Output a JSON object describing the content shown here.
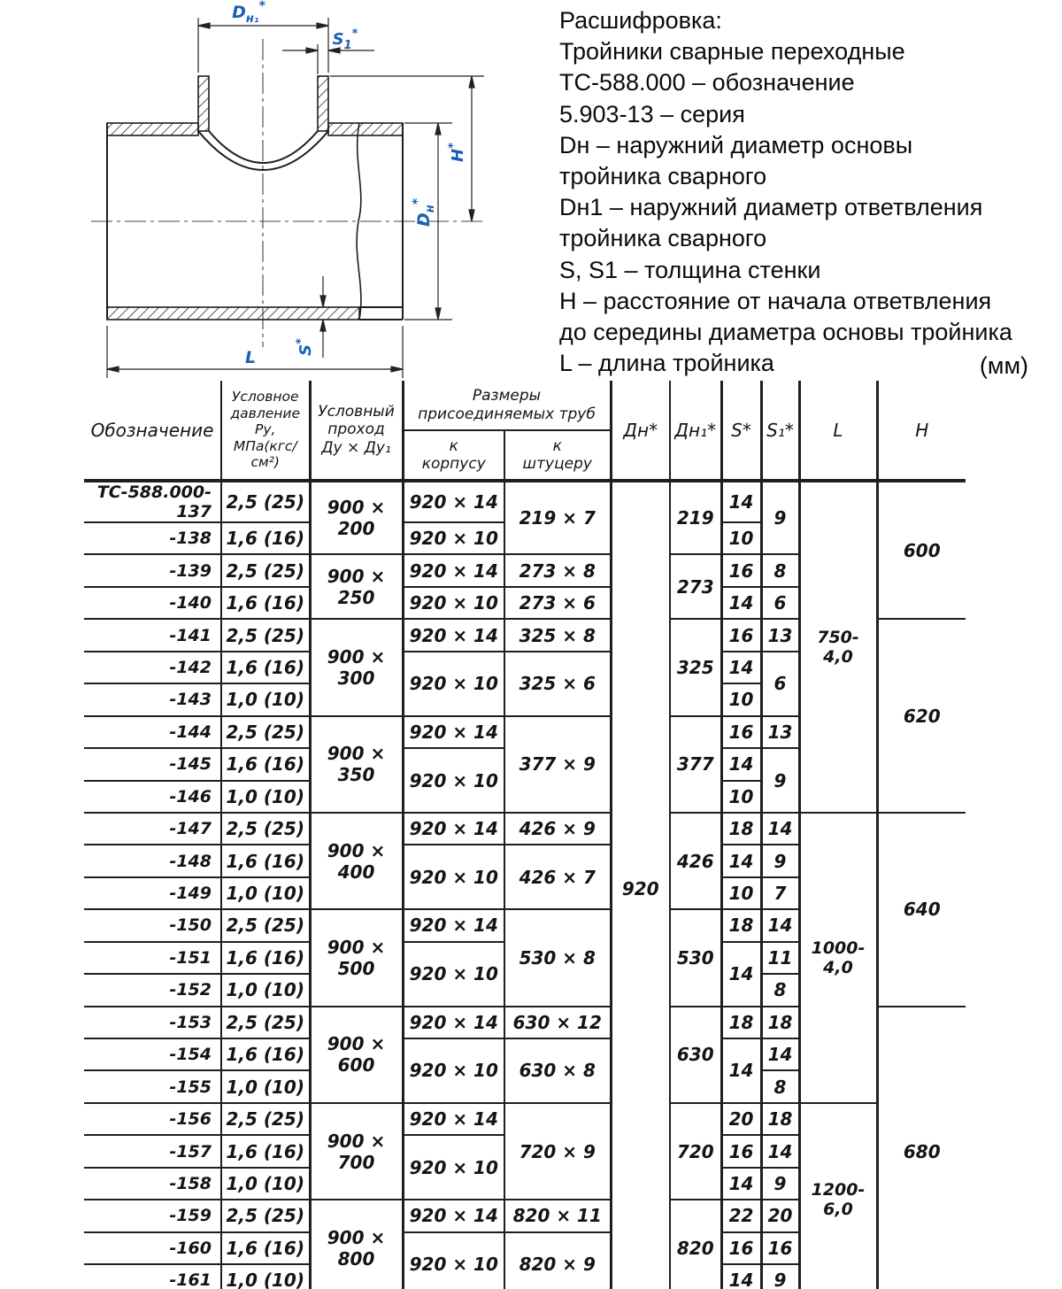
{
  "legend": {
    "lines": [
      "Расшифровка:",
      "Тройники сварные переходные",
      "ТС-588.000 – обозначение",
      "5.903-13 – серия",
      "Dн – наружний диаметр основы",
      "тройника сварного",
      "Dн1 – наружний диаметр ответвления",
      "тройника сварного",
      "S, S1 – толщина стенки",
      "Н – расстояние от начала ответвления",
      "до середины диаметра основы тройника",
      "L – длина тройника"
    ],
    "units": "(мм)"
  },
  "drawing": {
    "labels": {
      "star": "*",
      "dn1": {
        "b": "D",
        "s": "н₁"
      },
      "dn": {
        "b": "D",
        "s": "н"
      },
      "s1": {
        "b": "S",
        "s": "1"
      },
      "s": {
        "b": "S"
      },
      "h": {
        "b": "H"
      },
      "l": {
        "b": "L"
      }
    }
  },
  "table": {
    "header": {
      "designation": "Обозначение",
      "pressure": "Условное\nдавление\nРу,\nМПа(кгс/см²)",
      "bore": "Условный\nпроход\nДу × Ду₁",
      "pipes_group": "Размеры\nприсоединяемых труб",
      "to_body": "к\nкорпусу",
      "to_branch": "к\nштуцеру",
      "dn": "Дн*",
      "dn1": "Дн₁*",
      "s": "S*",
      "s1": "S₁*",
      "l": "L",
      "h": "H"
    },
    "rows": [
      [
        {
          "c": 0,
          "t": "ТС-588.000-137"
        },
        {
          "c": 1,
          "t": "2,5 (25)"
        },
        {
          "c": 2,
          "t": "900 × 200",
          "rs": 2
        },
        {
          "c": 3,
          "t": "920 × 14"
        },
        {
          "c": 4,
          "t": "219 × 7",
          "rs": 2
        },
        {
          "c": 5,
          "t": "920",
          "rs": 25
        },
        {
          "c": 6,
          "t": "219",
          "rs": 2
        },
        {
          "c": 7,
          "t": "14"
        },
        {
          "c": 8,
          "t": "9",
          "rs": 2
        },
        {
          "c": 9,
          "t": "750-4,0",
          "rs": 10
        },
        {
          "c": 10,
          "t": "600",
          "rs": 4
        }
      ],
      [
        {
          "c": 0,
          "t": "-138"
        },
        {
          "c": 1,
          "t": "1,6 (16)"
        },
        {
          "c": 3,
          "t": "920 × 10"
        },
        {
          "c": 7,
          "t": "10"
        }
      ],
      [
        {
          "c": 0,
          "t": "-139"
        },
        {
          "c": 1,
          "t": "2,5 (25)"
        },
        {
          "c": 2,
          "t": "900 × 250",
          "rs": 2
        },
        {
          "c": 3,
          "t": "920 × 14"
        },
        {
          "c": 4,
          "t": "273 × 8"
        },
        {
          "c": 6,
          "t": "273",
          "rs": 2
        },
        {
          "c": 7,
          "t": "16"
        },
        {
          "c": 8,
          "t": "8"
        }
      ],
      [
        {
          "c": 0,
          "t": "-140"
        },
        {
          "c": 1,
          "t": "1,6 (16)"
        },
        {
          "c": 3,
          "t": "920 × 10"
        },
        {
          "c": 4,
          "t": "273 × 6"
        },
        {
          "c": 7,
          "t": "14"
        },
        {
          "c": 8,
          "t": "6"
        }
      ],
      [
        {
          "c": 0,
          "t": "-141"
        },
        {
          "c": 1,
          "t": "2,5 (25)"
        },
        {
          "c": 2,
          "t": "900 × 300",
          "rs": 3
        },
        {
          "c": 3,
          "t": "920 × 14"
        },
        {
          "c": 4,
          "t": "325 × 8"
        },
        {
          "c": 6,
          "t": "325",
          "rs": 3
        },
        {
          "c": 7,
          "t": "16"
        },
        {
          "c": 8,
          "t": "13"
        },
        {
          "c": 10,
          "t": "620",
          "rs": 6
        }
      ],
      [
        {
          "c": 0,
          "t": "-142"
        },
        {
          "c": 1,
          "t": "1,6 (16)"
        },
        {
          "c": 3,
          "t": "920 × 10",
          "rs": 2
        },
        {
          "c": 4,
          "t": "325 × 6",
          "rs": 2
        },
        {
          "c": 7,
          "t": "14"
        },
        {
          "c": 8,
          "t": "6",
          "rs": 2
        }
      ],
      [
        {
          "c": 0,
          "t": "-143"
        },
        {
          "c": 1,
          "t": "1,0 (10)"
        },
        {
          "c": 7,
          "t": "10"
        }
      ],
      [
        {
          "c": 0,
          "t": "-144"
        },
        {
          "c": 1,
          "t": "2,5 (25)"
        },
        {
          "c": 2,
          "t": "900 × 350",
          "rs": 3
        },
        {
          "c": 3,
          "t": "920 × 14"
        },
        {
          "c": 4,
          "t": "377 × 9",
          "rs": 3
        },
        {
          "c": 6,
          "t": "377",
          "rs": 3
        },
        {
          "c": 7,
          "t": "16"
        },
        {
          "c": 8,
          "t": "13"
        }
      ],
      [
        {
          "c": 0,
          "t": "-145"
        },
        {
          "c": 1,
          "t": "1,6 (16)"
        },
        {
          "c": 3,
          "t": "920 × 10",
          "rs": 2
        },
        {
          "c": 7,
          "t": "14"
        },
        {
          "c": 8,
          "t": "9",
          "rs": 2
        }
      ],
      [
        {
          "c": 0,
          "t": "-146"
        },
        {
          "c": 1,
          "t": "1,0 (10)"
        },
        {
          "c": 7,
          "t": "10"
        }
      ],
      [
        {
          "c": 0,
          "t": "-147"
        },
        {
          "c": 1,
          "t": "2,5 (25)"
        },
        {
          "c": 2,
          "t": "900 × 400",
          "rs": 3
        },
        {
          "c": 3,
          "t": "920 × 14"
        },
        {
          "c": 4,
          "t": "426 × 9"
        },
        {
          "c": 6,
          "t": "426",
          "rs": 3
        },
        {
          "c": 7,
          "t": "18"
        },
        {
          "c": 8,
          "t": "14"
        },
        {
          "c": 9,
          "t": "1000-4,0",
          "rs": 9
        },
        {
          "c": 10,
          "t": "640",
          "rs": 6
        }
      ],
      [
        {
          "c": 0,
          "t": "-148"
        },
        {
          "c": 1,
          "t": "1,6 (16)"
        },
        {
          "c": 3,
          "t": "920 × 10",
          "rs": 2
        },
        {
          "c": 4,
          "t": "426 × 7",
          "rs": 2
        },
        {
          "c": 7,
          "t": "14"
        },
        {
          "c": 8,
          "t": "9"
        }
      ],
      [
        {
          "c": 0,
          "t": "-149"
        },
        {
          "c": 1,
          "t": "1,0 (10)"
        },
        {
          "c": 7,
          "t": "10"
        },
        {
          "c": 8,
          "t": "7"
        }
      ],
      [
        {
          "c": 0,
          "t": "-150"
        },
        {
          "c": 1,
          "t": "2,5 (25)"
        },
        {
          "c": 2,
          "t": "900 × 500",
          "rs": 3
        },
        {
          "c": 3,
          "t": "920 × 14"
        },
        {
          "c": 4,
          "t": "530 × 8",
          "rs": 3
        },
        {
          "c": 6,
          "t": "530",
          "rs": 3
        },
        {
          "c": 7,
          "t": "18"
        },
        {
          "c": 8,
          "t": "14"
        }
      ],
      [
        {
          "c": 0,
          "t": "-151"
        },
        {
          "c": 1,
          "t": "1,6 (16)"
        },
        {
          "c": 3,
          "t": "920 × 10",
          "rs": 2
        },
        {
          "c": 7,
          "t": "14",
          "rs": 2
        },
        {
          "c": 8,
          "t": "11"
        }
      ],
      [
        {
          "c": 0,
          "t": "-152"
        },
        {
          "c": 1,
          "t": "1,0 (10)"
        },
        {
          "c": 8,
          "t": "8"
        }
      ],
      [
        {
          "c": 0,
          "t": "-153"
        },
        {
          "c": 1,
          "t": "2,5 (25)"
        },
        {
          "c": 2,
          "t": "900 × 600",
          "rs": 3
        },
        {
          "c": 3,
          "t": "920 × 14"
        },
        {
          "c": 4,
          "t": "630 × 12"
        },
        {
          "c": 6,
          "t": "630",
          "rs": 3
        },
        {
          "c": 7,
          "t": "18"
        },
        {
          "c": 8,
          "t": "18"
        },
        {
          "c": 10,
          "t": "680",
          "rs": 9
        }
      ],
      [
        {
          "c": 0,
          "t": "-154"
        },
        {
          "c": 1,
          "t": "1,6 (16)"
        },
        {
          "c": 3,
          "t": "920 × 10",
          "rs": 2
        },
        {
          "c": 4,
          "t": "630 × 8",
          "rs": 2
        },
        {
          "c": 7,
          "t": "14",
          "rs": 2
        },
        {
          "c": 8,
          "t": "14"
        }
      ],
      [
        {
          "c": 0,
          "t": "-155"
        },
        {
          "c": 1,
          "t": "1,0 (10)"
        },
        {
          "c": 8,
          "t": "8"
        }
      ],
      [
        {
          "c": 0,
          "t": "-156"
        },
        {
          "c": 1,
          "t": "2,5 (25)"
        },
        {
          "c": 2,
          "t": "900 × 700",
          "rs": 3
        },
        {
          "c": 3,
          "t": "920 × 14"
        },
        {
          "c": 4,
          "t": "720 × 9",
          "rs": 3
        },
        {
          "c": 6,
          "t": "720",
          "rs": 3
        },
        {
          "c": 7,
          "t": "20"
        },
        {
          "c": 8,
          "t": "18"
        },
        {
          "c": 9,
          "t": "1200-6,0",
          "rs": 6
        }
      ],
      [
        {
          "c": 0,
          "t": "-157"
        },
        {
          "c": 1,
          "t": "1,6 (16)"
        },
        {
          "c": 3,
          "t": "920 × 10",
          "rs": 2
        },
        {
          "c": 7,
          "t": "16"
        },
        {
          "c": 8,
          "t": "14"
        }
      ],
      [
        {
          "c": 0,
          "t": "-158"
        },
        {
          "c": 1,
          "t": "1,0 (10)"
        },
        {
          "c": 7,
          "t": "14"
        },
        {
          "c": 8,
          "t": "9"
        }
      ],
      [
        {
          "c": 0,
          "t": "-159"
        },
        {
          "c": 1,
          "t": "2,5 (25)"
        },
        {
          "c": 2,
          "t": "900 × 800",
          "rs": 3
        },
        {
          "c": 3,
          "t": "920 × 14"
        },
        {
          "c": 4,
          "t": "820 × 11"
        },
        {
          "c": 6,
          "t": "820",
          "rs": 3
        },
        {
          "c": 7,
          "t": "22"
        },
        {
          "c": 8,
          "t": "20"
        }
      ],
      [
        {
          "c": 0,
          "t": "-160"
        },
        {
          "c": 1,
          "t": "1,6 (16)"
        },
        {
          "c": 3,
          "t": "920 × 10",
          "rs": 2
        },
        {
          "c": 4,
          "t": "820 × 9",
          "rs": 2
        },
        {
          "c": 7,
          "t": "16"
        },
        {
          "c": 8,
          "t": "16"
        }
      ],
      [
        {
          "c": 0,
          "t": "-161"
        },
        {
          "c": 1,
          "t": "1,0 (10)"
        },
        {
          "c": 7,
          "t": "14"
        },
        {
          "c": 8,
          "t": "9"
        }
      ]
    ]
  }
}
